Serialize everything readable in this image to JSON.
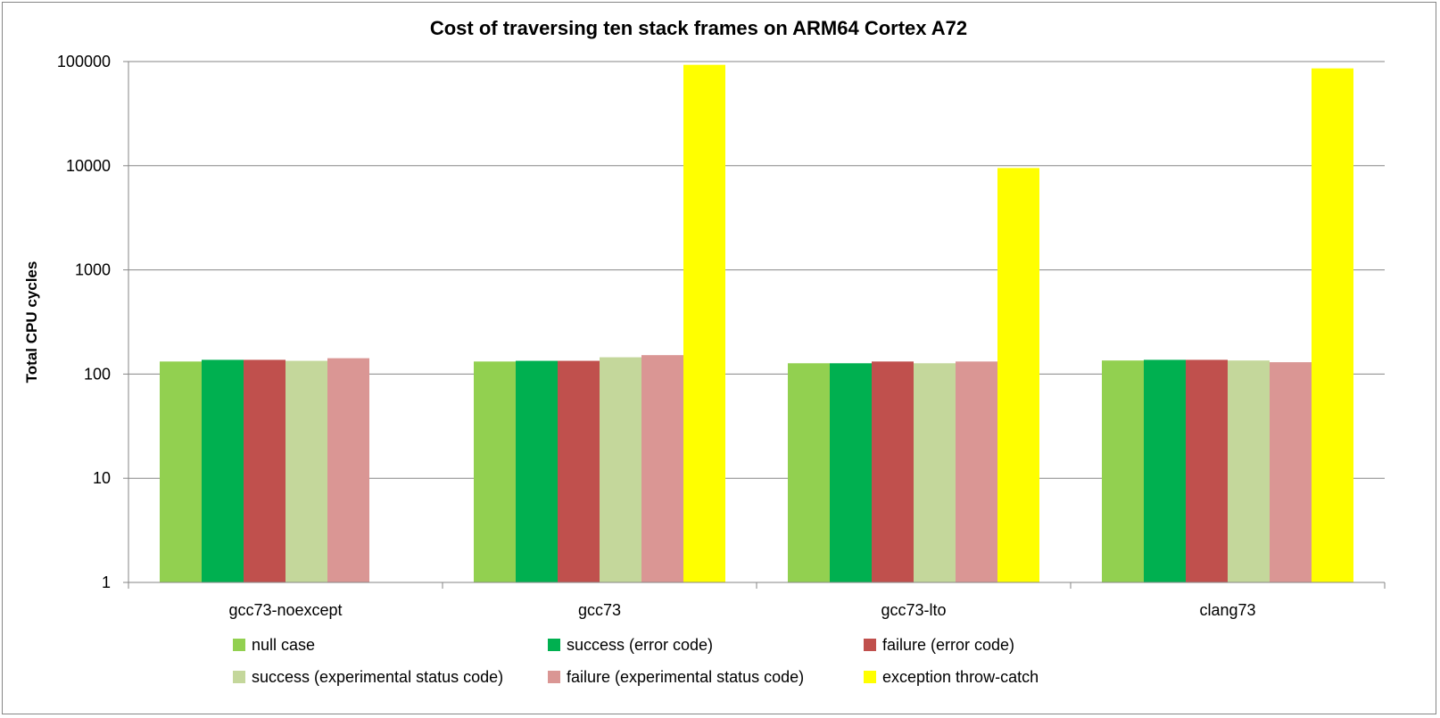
{
  "chart_data": {
    "type": "bar",
    "title": "Cost of traversing ten stack frames on ARM64 Cortex A72",
    "xlabel": "",
    "ylabel": "Total CPU cycles",
    "yscale": "log",
    "ylim": [
      1,
      100000
    ],
    "yticks": [
      1,
      10,
      100,
      1000,
      10000,
      100000
    ],
    "ytick_labels": [
      "1",
      "10",
      "100",
      "1000",
      "10000",
      "100000"
    ],
    "grid": true,
    "legend_position": "bottom",
    "categories": [
      "gcc73-noexcept",
      "gcc73",
      "gcc73-lto",
      "clang73"
    ],
    "series": [
      {
        "name": "null case",
        "color": "#92D050",
        "values": [
          132,
          132,
          127,
          135
        ]
      },
      {
        "name": "success (error code)",
        "color": "#00B050",
        "values": [
          137,
          134,
          127,
          137
        ]
      },
      {
        "name": "failure (error code)",
        "color": "#C0504D",
        "values": [
          137,
          134,
          132,
          137
        ]
      },
      {
        "name": "success (experimental status code)",
        "color": "#C4D79B",
        "values": [
          134,
          145,
          127,
          135
        ]
      },
      {
        "name": "failure (experimental status code)",
        "color": "#DA9694",
        "values": [
          142,
          152,
          132,
          130
        ]
      },
      {
        "name": "exception throw-catch",
        "color": "#FFFF00",
        "values": [
          null,
          93000,
          9500,
          86000
        ]
      }
    ]
  }
}
